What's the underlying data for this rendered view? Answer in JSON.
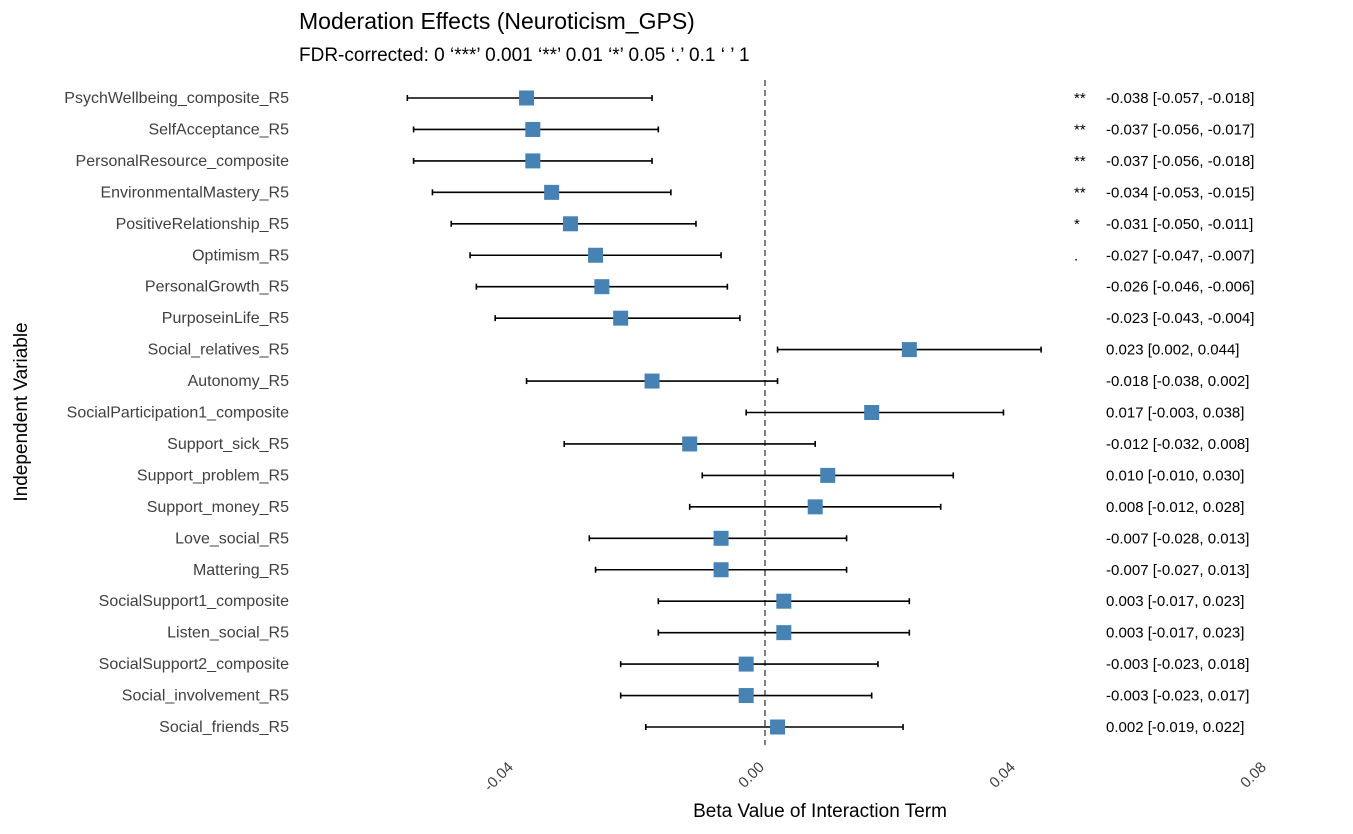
{
  "chart_data": {
    "type": "forest",
    "title": "Moderation Effects (Neuroticism_GPS)",
    "subtitle": "FDR-corrected: 0 ‘***’ 0.001 ‘**’ 0.01 ‘*’ 0.05 ‘.’ 0.1 ‘ ’ 1",
    "xlabel": "Beta Value of Interaction Term",
    "ylabel": "Independent Variable",
    "xlim": [
      -0.06,
      0.08
    ],
    "xticks": [
      -0.04,
      0.0,
      0.04,
      0.08
    ],
    "xtick_labels": [
      "-0.04",
      "0.00",
      "0.04",
      "0.08"
    ],
    "reference_line": 0.0,
    "point_color": "#4682B4",
    "grid": false,
    "rows": [
      {
        "label": "PsychWellbeing_composite_R5",
        "beta": -0.038,
        "lo": -0.057,
        "hi": -0.018,
        "sig": "**",
        "ci_text": "-0.038 [-0.057, -0.018]"
      },
      {
        "label": "SelfAcceptance_R5",
        "beta": -0.037,
        "lo": -0.056,
        "hi": -0.017,
        "sig": "**",
        "ci_text": "-0.037 [-0.056, -0.017]"
      },
      {
        "label": "PersonalResource_composite",
        "beta": -0.037,
        "lo": -0.056,
        "hi": -0.018,
        "sig": "**",
        "ci_text": "-0.037 [-0.056, -0.018]"
      },
      {
        "label": "EnvironmentalMastery_R5",
        "beta": -0.034,
        "lo": -0.053,
        "hi": -0.015,
        "sig": "**",
        "ci_text": "-0.034 [-0.053, -0.015]"
      },
      {
        "label": "PositiveRelationship_R5",
        "beta": -0.031,
        "lo": -0.05,
        "hi": -0.011,
        "sig": "*",
        "ci_text": "-0.031 [-0.050, -0.011]"
      },
      {
        "label": "Optimism_R5",
        "beta": -0.027,
        "lo": -0.047,
        "hi": -0.007,
        "sig": ".",
        "ci_text": "-0.027 [-0.047, -0.007]"
      },
      {
        "label": "PersonalGrowth_R5",
        "beta": -0.026,
        "lo": -0.046,
        "hi": -0.006,
        "sig": "",
        "ci_text": "-0.026 [-0.046, -0.006]"
      },
      {
        "label": "PurposeinLife_R5",
        "beta": -0.023,
        "lo": -0.043,
        "hi": -0.004,
        "sig": "",
        "ci_text": "-0.023 [-0.043, -0.004]"
      },
      {
        "label": "Social_relatives_R5",
        "beta": 0.023,
        "lo": 0.002,
        "hi": 0.044,
        "sig": "",
        "ci_text": "0.023 [0.002, 0.044]"
      },
      {
        "label": "Autonomy_R5",
        "beta": -0.018,
        "lo": -0.038,
        "hi": 0.002,
        "sig": "",
        "ci_text": "-0.018 [-0.038, 0.002]"
      },
      {
        "label": "SocialParticipation1_composite",
        "beta": 0.017,
        "lo": -0.003,
        "hi": 0.038,
        "sig": "",
        "ci_text": "0.017 [-0.003, 0.038]"
      },
      {
        "label": "Support_sick_R5",
        "beta": -0.012,
        "lo": -0.032,
        "hi": 0.008,
        "sig": "",
        "ci_text": "-0.012 [-0.032, 0.008]"
      },
      {
        "label": "Support_problem_R5",
        "beta": 0.01,
        "lo": -0.01,
        "hi": 0.03,
        "sig": "",
        "ci_text": "0.010 [-0.010, 0.030]"
      },
      {
        "label": "Support_money_R5",
        "beta": 0.008,
        "lo": -0.012,
        "hi": 0.028,
        "sig": "",
        "ci_text": "0.008 [-0.012, 0.028]"
      },
      {
        "label": "Love_social_R5",
        "beta": -0.007,
        "lo": -0.028,
        "hi": 0.013,
        "sig": "",
        "ci_text": "-0.007 [-0.028, 0.013]"
      },
      {
        "label": "Mattering_R5",
        "beta": -0.007,
        "lo": -0.027,
        "hi": 0.013,
        "sig": "",
        "ci_text": "-0.007 [-0.027, 0.013]"
      },
      {
        "label": "SocialSupport1_composite",
        "beta": 0.003,
        "lo": -0.017,
        "hi": 0.023,
        "sig": "",
        "ci_text": "0.003 [-0.017, 0.023]"
      },
      {
        "label": "Listen_social_R5",
        "beta": 0.003,
        "lo": -0.017,
        "hi": 0.023,
        "sig": "",
        "ci_text": "0.003 [-0.017, 0.023]"
      },
      {
        "label": "SocialSupport2_composite",
        "beta": -0.003,
        "lo": -0.023,
        "hi": 0.018,
        "sig": "",
        "ci_text": "-0.003 [-0.023, 0.018]"
      },
      {
        "label": "Social_involvement_R5",
        "beta": -0.003,
        "lo": -0.023,
        "hi": 0.017,
        "sig": "",
        "ci_text": "-0.003 [-0.023, 0.017]"
      },
      {
        "label": "Social_friends_R5",
        "beta": 0.002,
        "lo": -0.019,
        "hi": 0.022,
        "sig": "",
        "ci_text": "0.002 [-0.019, 0.022]"
      }
    ]
  }
}
